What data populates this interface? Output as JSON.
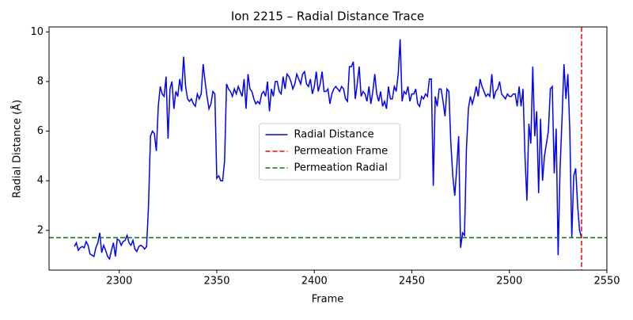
{
  "chart_data": {
    "type": "line",
    "title": "Ion 2215 – Radial Distance Trace",
    "x_label": "Frame",
    "y_label": "Radial Distance (Å)",
    "x": [
      2277,
      2278,
      2279,
      2280,
      2281,
      2282,
      2283,
      2284,
      2285,
      2286,
      2287,
      2288,
      2289,
      2290,
      2291,
      2292,
      2293,
      2294,
      2295,
      2296,
      2297,
      2298,
      2299,
      2300,
      2301,
      2302,
      2303,
      2304,
      2305,
      2306,
      2307,
      2308,
      2309,
      2310,
      2311,
      2312,
      2313,
      2314,
      2315,
      2316,
      2317,
      2318,
      2319,
      2320,
      2321,
      2322,
      2323,
      2324,
      2325,
      2326,
      2327,
      2328,
      2329,
      2330,
      2331,
      2332,
      2333,
      2334,
      2335,
      2336,
      2337,
      2338,
      2339,
      2340,
      2341,
      2342,
      2343,
      2344,
      2345,
      2346,
      2347,
      2348,
      2349,
      2350,
      2351,
      2352,
      2353,
      2354,
      2355,
      2356,
      2357,
      2358,
      2359,
      2360,
      2361,
      2362,
      2363,
      2364,
      2365,
      2366,
      2367,
      2368,
      2369,
      2370,
      2371,
      2372,
      2373,
      2374,
      2375,
      2376,
      2377,
      2378,
      2379,
      2380,
      2381,
      2382,
      2383,
      2384,
      2385,
      2386,
      2387,
      2388,
      2389,
      2390,
      2391,
      2392,
      2393,
      2394,
      2395,
      2396,
      2397,
      2398,
      2399,
      2400,
      2401,
      2402,
      2403,
      2404,
      2405,
      2406,
      2407,
      2408,
      2409,
      2410,
      2411,
      2412,
      2413,
      2414,
      2415,
      2416,
      2417,
      2418,
      2419,
      2420,
      2421,
      2422,
      2423,
      2424,
      2425,
      2426,
      2427,
      2428,
      2429,
      2430,
      2431,
      2432,
      2433,
      2434,
      2435,
      2436,
      2437,
      2438,
      2439,
      2440,
      2441,
      2442,
      2443,
      2444,
      2445,
      2446,
      2447,
      2448,
      2449,
      2450,
      2451,
      2452,
      2453,
      2454,
      2455,
      2456,
      2457,
      2458,
      2459,
      2460,
      2461,
      2462,
      2463,
      2464,
      2465,
      2466,
      2467,
      2468,
      2469,
      2470,
      2471,
      2472,
      2473,
      2474,
      2475,
      2476,
      2477,
      2478,
      2479,
      2480,
      2481,
      2482,
      2483,
      2484,
      2485,
      2486,
      2487,
      2488,
      2489,
      2490,
      2491,
      2492,
      2493,
      2494,
      2495,
      2496,
      2497,
      2498,
      2499,
      2500,
      2501,
      2502,
      2503,
      2504,
      2505,
      2506,
      2507,
      2508,
      2509,
      2510,
      2511,
      2512,
      2513,
      2514,
      2515,
      2516,
      2517,
      2518,
      2519,
      2520,
      2521,
      2522,
      2523,
      2524,
      2525,
      2526,
      2527,
      2528,
      2529,
      2530,
      2531,
      2532,
      2533,
      2534,
      2535,
      2536,
      2537
    ],
    "series": [
      {
        "name": "Radial Distance",
        "color": "#0000ff",
        "values": [
          1.35,
          1.5,
          1.2,
          1.3,
          1.35,
          1.3,
          1.55,
          1.4,
          1.05,
          1.0,
          0.95,
          1.3,
          1.5,
          1.9,
          1.1,
          1.4,
          1.2,
          0.95,
          0.85,
          1.2,
          1.5,
          0.95,
          1.65,
          1.6,
          1.4,
          1.55,
          1.6,
          1.8,
          1.5,
          1.4,
          1.6,
          1.25,
          1.15,
          1.35,
          1.4,
          1.35,
          1.25,
          1.35,
          3.0,
          5.8,
          6.0,
          5.9,
          5.2,
          7.0,
          7.8,
          7.5,
          7.4,
          8.2,
          5.7,
          7.7,
          8.0,
          6.9,
          7.6,
          7.4,
          8.1,
          7.6,
          9.0,
          7.8,
          7.3,
          7.2,
          7.3,
          7.1,
          7.0,
          7.5,
          7.3,
          7.5,
          8.7,
          8.0,
          7.4,
          6.9,
          7.1,
          7.6,
          7.5,
          4.1,
          4.2,
          4.0,
          4.0,
          4.8,
          7.9,
          7.7,
          7.6,
          7.4,
          7.7,
          7.5,
          7.8,
          7.6,
          7.4,
          8.1,
          6.9,
          8.3,
          7.7,
          7.6,
          7.3,
          7.1,
          7.2,
          7.1,
          7.5,
          7.6,
          7.4,
          8.0,
          6.8,
          7.7,
          7.4,
          8.0,
          8.0,
          7.6,
          7.5,
          8.2,
          7.7,
          8.3,
          8.2,
          8.0,
          7.7,
          7.9,
          8.3,
          8.1,
          7.9,
          8.3,
          8.4,
          7.9,
          7.8,
          8.1,
          7.5,
          7.8,
          8.4,
          7.6,
          7.9,
          8.4,
          7.6,
          7.6,
          7.7,
          7.1,
          7.5,
          7.7,
          7.8,
          7.7,
          7.6,
          7.8,
          7.7,
          7.3,
          7.2,
          8.6,
          8.6,
          8.8,
          7.3,
          7.9,
          8.6,
          7.4,
          7.6,
          7.5,
          7.2,
          7.8,
          7.1,
          7.6,
          8.3,
          7.5,
          7.2,
          7.6,
          7.0,
          7.2,
          6.9,
          7.8,
          7.3,
          7.3,
          7.8,
          7.6,
          8.3,
          9.7,
          7.2,
          7.6,
          7.5,
          7.8,
          7.2,
          7.5,
          7.5,
          7.7,
          7.1,
          7.0,
          7.4,
          7.3,
          7.5,
          7.4,
          8.1,
          8.1,
          3.8,
          7.4,
          7.0,
          7.7,
          7.7,
          7.2,
          6.6,
          7.7,
          7.6,
          5.5,
          4.2,
          3.4,
          4.5,
          5.8,
          1.3,
          1.9,
          1.8,
          5.3,
          6.9,
          7.4,
          7.1,
          7.4,
          7.8,
          7.4,
          8.1,
          7.8,
          7.6,
          7.4,
          7.5,
          7.4,
          8.3,
          7.3,
          7.6,
          7.7,
          8.0,
          7.5,
          7.4,
          7.3,
          7.5,
          7.4,
          7.4,
          7.5,
          7.5,
          7.0,
          7.8,
          7.0,
          7.7,
          5.0,
          3.2,
          6.3,
          5.5,
          8.6,
          5.8,
          6.8,
          3.5,
          6.5,
          4.0,
          5.0,
          5.5,
          6.0,
          7.7,
          7.8,
          4.3,
          6.1,
          1.0,
          4.5,
          6.5,
          8.7,
          7.3,
          8.3,
          6.0,
          1.7,
          4.2,
          4.5,
          3.0,
          2.0,
          1.7
        ]
      }
    ],
    "reference_lines": [
      {
        "name": "Permeation Frame",
        "color": "#ff0000",
        "orientation": "vertical",
        "value": 2537
      },
      {
        "name": "Permeation Radial",
        "color": "#008000",
        "orientation": "horizontal",
        "value": 1.71
      }
    ],
    "xlim": [
      2264,
      2550
    ],
    "ylim": [
      0.4,
      10.2
    ],
    "xticks": [
      2300,
      2350,
      2400,
      2450,
      2500,
      2550
    ],
    "yticks": [
      2,
      4,
      6,
      8,
      10
    ],
    "legend": "center"
  }
}
